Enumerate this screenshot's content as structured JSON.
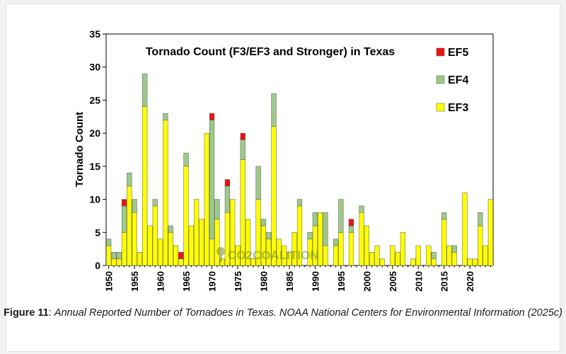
{
  "chart_data": {
    "type": "bar",
    "stacked": true,
    "title": "Tornado Count (F3/EF3 and Stronger) in Texas",
    "ylabel": "Tornado Count",
    "xlabel": "",
    "ylim": [
      0,
      35
    ],
    "yticks": [
      0,
      5,
      10,
      15,
      20,
      25,
      30,
      35
    ],
    "xticks": [
      "1950",
      "1955",
      "1960",
      "1965",
      "1970",
      "1975",
      "1980",
      "1985",
      "1990",
      "1995",
      "2000",
      "2005",
      "2010",
      "2015",
      "2020"
    ],
    "grid": false,
    "legend_placement": "top-right",
    "years": [
      1950,
      1951,
      1952,
      1953,
      1954,
      1955,
      1956,
      1957,
      1958,
      1959,
      1960,
      1961,
      1962,
      1963,
      1964,
      1965,
      1966,
      1967,
      1968,
      1969,
      1970,
      1971,
      1972,
      1973,
      1974,
      1975,
      1976,
      1977,
      1978,
      1979,
      1980,
      1981,
      1982,
      1983,
      1984,
      1985,
      1986,
      1987,
      1988,
      1989,
      1990,
      1991,
      1992,
      1993,
      1994,
      1995,
      1996,
      1997,
      1998,
      1999,
      2000,
      2001,
      2002,
      2003,
      2004,
      2005,
      2006,
      2007,
      2008,
      2009,
      2010,
      2011,
      2012,
      2013,
      2014,
      2015,
      2016,
      2017,
      2018,
      2019,
      2020,
      2021,
      2022,
      2023,
      2024
    ],
    "series": [
      {
        "name": "EF3",
        "color": "#ffff00",
        "values": [
          3,
          1,
          1,
          5,
          12,
          8,
          2,
          24,
          6,
          9,
          4,
          22,
          5,
          3,
          1,
          15,
          6,
          10,
          7,
          20,
          4,
          7,
          1,
          8,
          10,
          3,
          16,
          7,
          1,
          10,
          6,
          4,
          21,
          4,
          3,
          2,
          5,
          9,
          0,
          4,
          6,
          8,
          3,
          0,
          3,
          5,
          0,
          5,
          0,
          8,
          6,
          2,
          3,
          1,
          0,
          3,
          2,
          5,
          0,
          1,
          3,
          0,
          3,
          1,
          0,
          7,
          3,
          2,
          0,
          11,
          1,
          1,
          6,
          3,
          10
        ]
      },
      {
        "name": "EF4",
        "color": "#9ec98a",
        "values": [
          1,
          1,
          1,
          4,
          2,
          2,
          0,
          5,
          0,
          1,
          0,
          1,
          1,
          0,
          0,
          2,
          0,
          0,
          0,
          0,
          18,
          3,
          0,
          4,
          0,
          0,
          3,
          0,
          0,
          5,
          1,
          1,
          5,
          0,
          0,
          0,
          0,
          1,
          0,
          1,
          2,
          0,
          5,
          0,
          1,
          5,
          0,
          1,
          0,
          1,
          0,
          0,
          0,
          0,
          0,
          0,
          0,
          0,
          0,
          0,
          0,
          0,
          0,
          1,
          0,
          1,
          0,
          1,
          0,
          0,
          0,
          0,
          2,
          0,
          0
        ]
      },
      {
        "name": "EF5",
        "color": "#ee1111",
        "values": [
          0,
          0,
          0,
          1,
          0,
          0,
          0,
          0,
          0,
          0,
          0,
          0,
          0,
          0,
          1,
          0,
          0,
          0,
          0,
          0,
          1,
          0,
          0,
          1,
          0,
          0,
          1,
          0,
          0,
          0,
          0,
          0,
          0,
          0,
          0,
          0,
          0,
          0,
          0,
          0,
          0,
          0,
          0,
          0,
          0,
          0,
          0,
          1,
          0,
          0,
          0,
          0,
          0,
          0,
          0,
          0,
          0,
          0,
          0,
          0,
          0,
          0,
          0,
          0,
          0,
          0,
          0,
          0,
          0,
          0,
          0,
          0,
          0,
          0,
          0
        ]
      }
    ]
  },
  "legend": [
    {
      "label": "EF5",
      "color": "#ee1111"
    },
    {
      "label": "EF4",
      "color": "#9ec98a"
    },
    {
      "label": "EF3",
      "color": "#ffff00"
    }
  ],
  "watermark": "CO2COALITION",
  "caption": {
    "label": "Figure 11",
    "separator": ": ",
    "text": "Annual Reported Number of Tornadoes in Texas. NOAA National Centers for Environmental Information (2025c)"
  }
}
